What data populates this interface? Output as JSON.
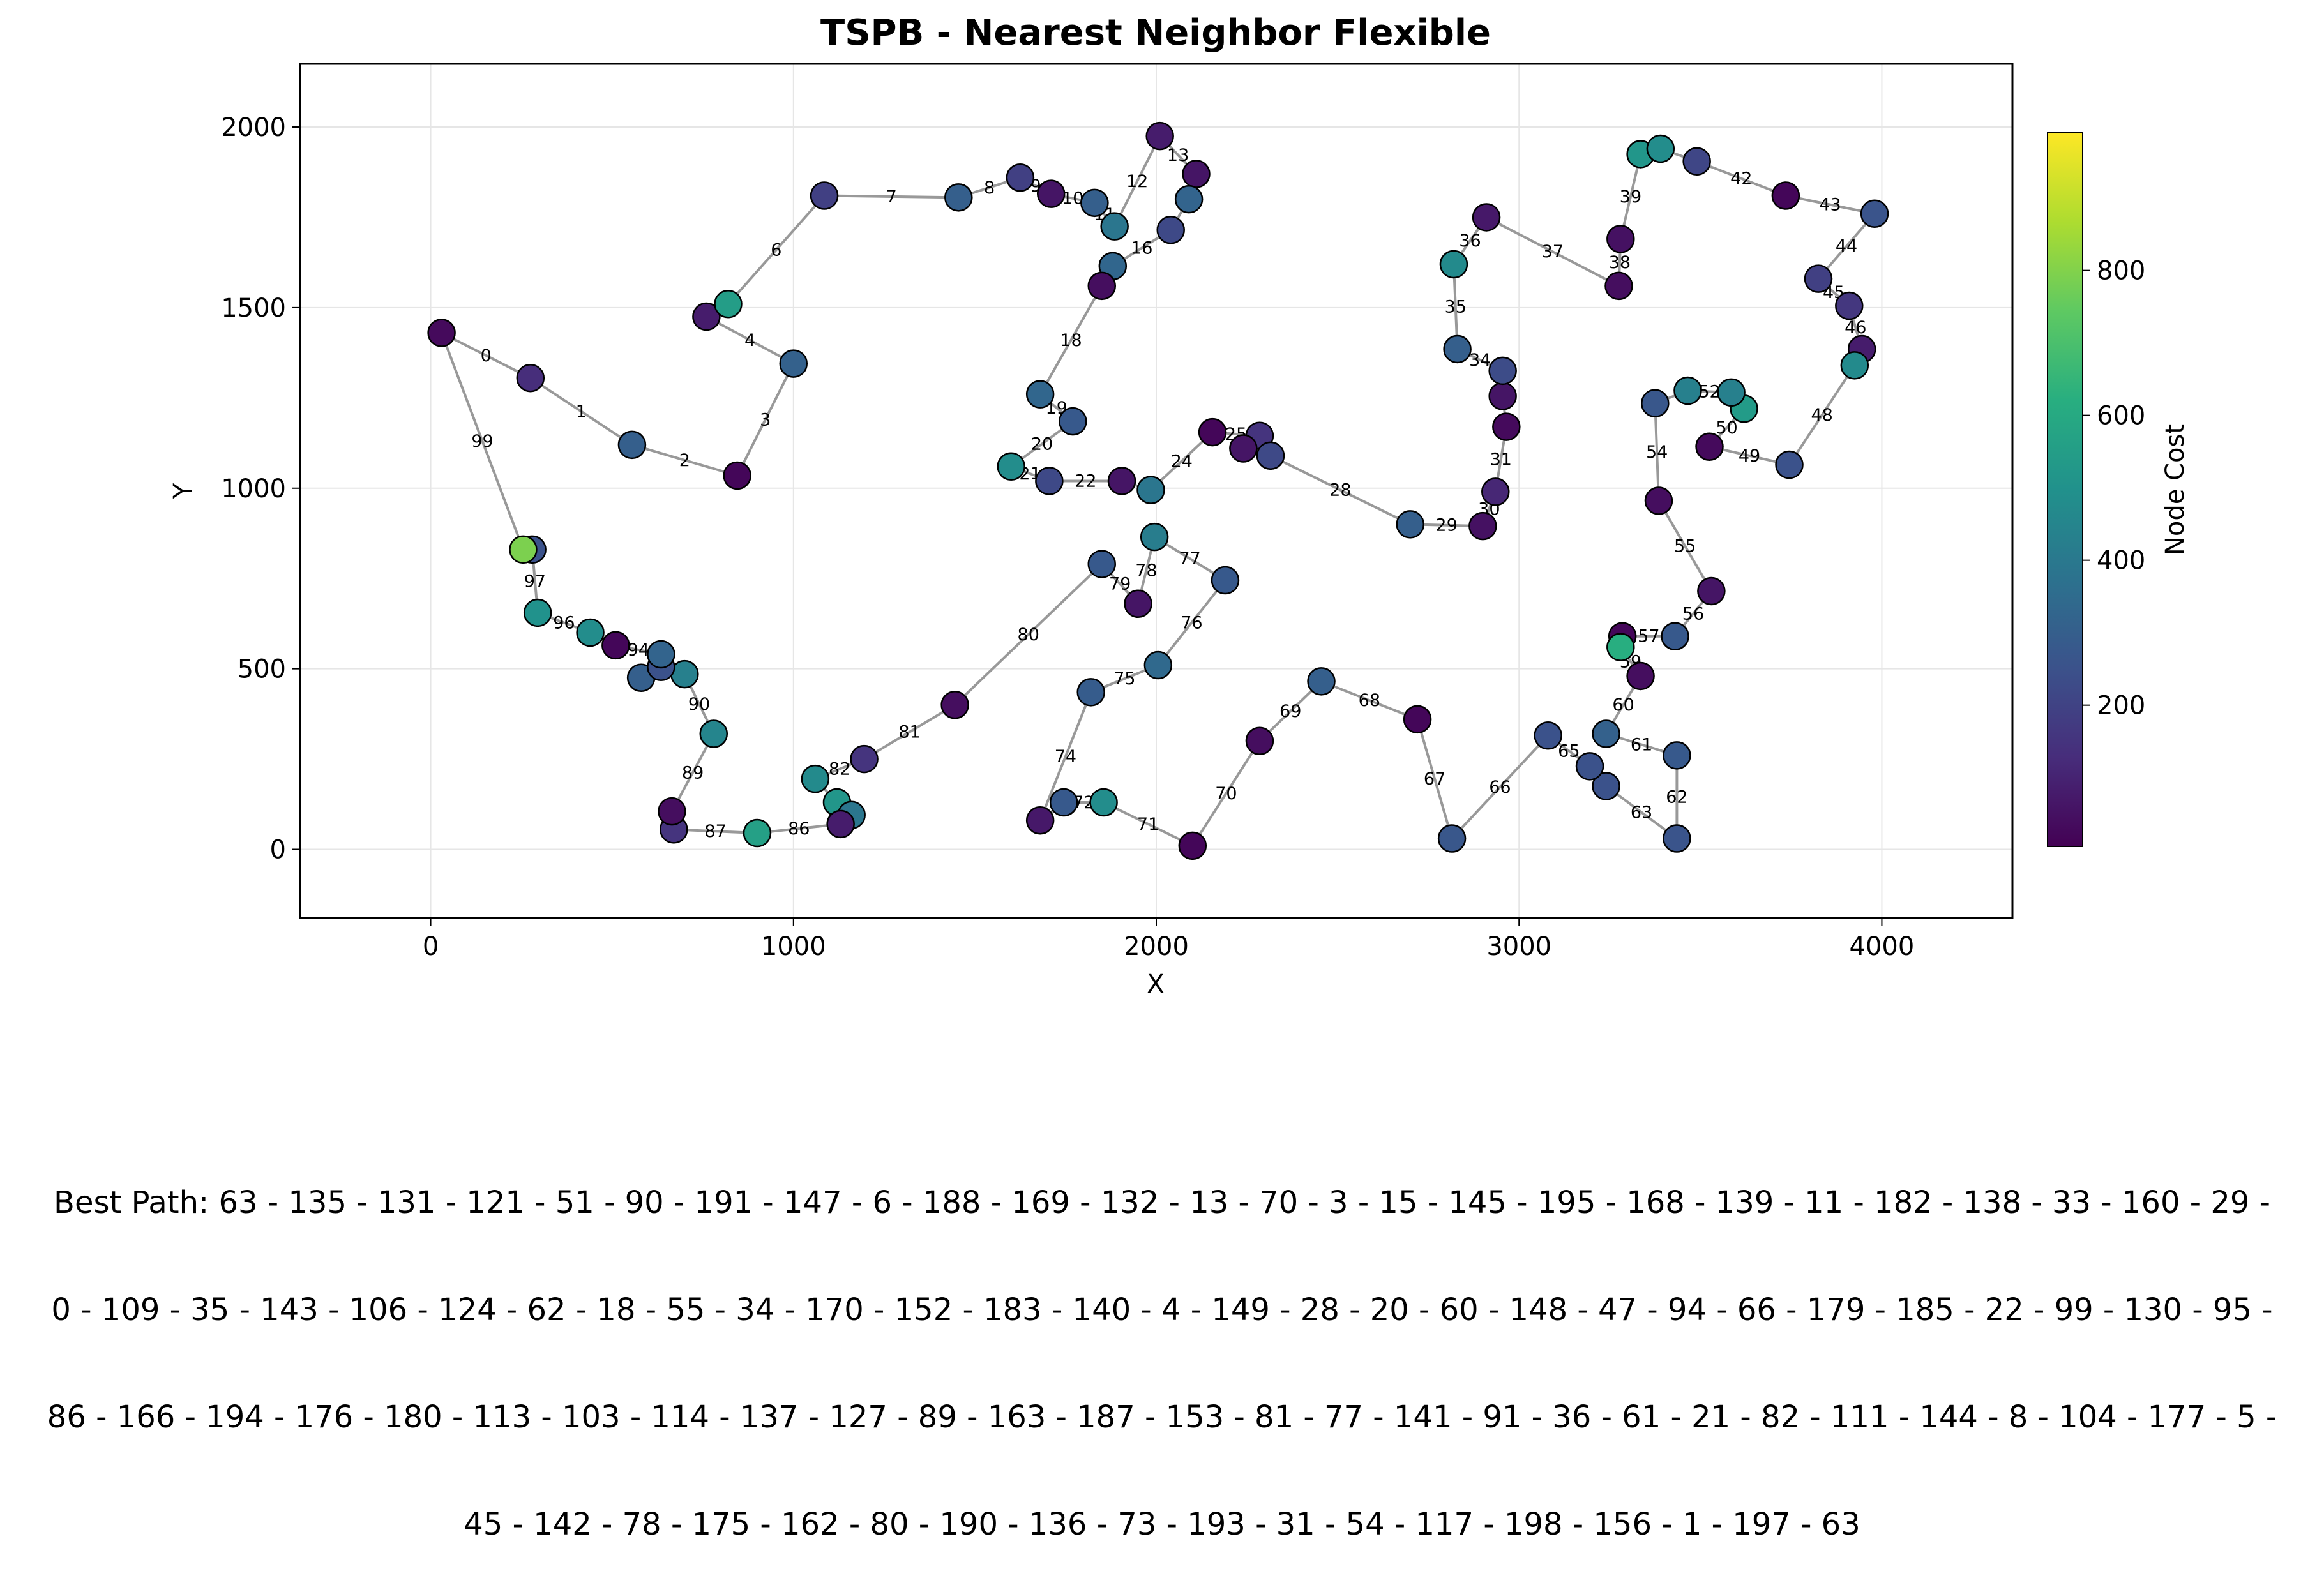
{
  "chart_data": {
    "type": "scatter",
    "title": "TSPB - Nearest Neighbor Flexible",
    "xlabel": "X",
    "ylabel": "Y",
    "xlim": [
      -360,
      4360
    ],
    "ylim": [
      -190,
      2175
    ],
    "xticks": [
      0,
      1000,
      2000,
      3000,
      4000
    ],
    "yticks": [
      0,
      500,
      1000,
      1500,
      2000
    ],
    "grid": true,
    "colorbar": {
      "label": "Node Cost",
      "colormap": "viridis",
      "min": 5,
      "max": 990,
      "ticks": [
        200,
        400,
        600,
        800
      ]
    },
    "edge_color": "#999999",
    "tour": [
      {
        "x": 30,
        "y": 1430,
        "cost": 30
      },
      {
        "x": 275,
        "y": 1305,
        "cost": 130
      },
      {
        "x": 555,
        "y": 1120,
        "cost": 300
      },
      {
        "x": 845,
        "y": 1035,
        "cost": 20
      },
      {
        "x": 1000,
        "y": 1345,
        "cost": 310
      },
      {
        "x": 760,
        "y": 1475,
        "cost": 80
      },
      {
        "x": 820,
        "y": 1510,
        "cost": 550
      },
      {
        "x": 1085,
        "y": 1810,
        "cost": 190
      },
      {
        "x": 1455,
        "y": 1805,
        "cost": 300
      },
      {
        "x": 1625,
        "y": 1860,
        "cost": 190
      },
      {
        "x": 1710,
        "y": 1815,
        "cost": 60
      },
      {
        "x": 1830,
        "y": 1790,
        "cost": 300
      },
      {
        "x": 1885,
        "y": 1725,
        "cost": 390
      },
      {
        "x": 2010,
        "y": 1975,
        "cost": 80
      },
      {
        "x": 2110,
        "y": 1870,
        "cost": 60
      },
      {
        "x": 2090,
        "y": 1800,
        "cost": 320
      },
      {
        "x": 2040,
        "y": 1715,
        "cost": 220
      },
      {
        "x": 1880,
        "y": 1615,
        "cost": 330
      },
      {
        "x": 1850,
        "y": 1560,
        "cost": 40
      },
      {
        "x": 1680,
        "y": 1260,
        "cost": 330
      },
      {
        "x": 1770,
        "y": 1185,
        "cost": 280
      },
      {
        "x": 1600,
        "y": 1060,
        "cost": 480
      },
      {
        "x": 1705,
        "y": 1020,
        "cost": 220
      },
      {
        "x": 1905,
        "y": 1020,
        "cost": 60
      },
      {
        "x": 1985,
        "y": 995,
        "cost": 390
      },
      {
        "x": 2155,
        "y": 1155,
        "cost": 20
      },
      {
        "x": 2285,
        "y": 1145,
        "cost": 150
      },
      {
        "x": 2240,
        "y": 1110,
        "cost": 60
      },
      {
        "x": 2315,
        "y": 1090,
        "cost": 220
      },
      {
        "x": 2700,
        "y": 900,
        "cost": 300
      },
      {
        "x": 2900,
        "y": 895,
        "cost": 50
      },
      {
        "x": 2935,
        "y": 990,
        "cost": 110
      },
      {
        "x": 2965,
        "y": 1170,
        "cost": 30
      },
      {
        "x": 2955,
        "y": 1255,
        "cost": 60
      },
      {
        "x": 2955,
        "y": 1325,
        "cost": 230
      },
      {
        "x": 2830,
        "y": 1385,
        "cost": 300
      },
      {
        "x": 2820,
        "y": 1620,
        "cost": 470
      },
      {
        "x": 2910,
        "y": 1750,
        "cost": 70
      },
      {
        "x": 3275,
        "y": 1560,
        "cost": 40
      },
      {
        "x": 3280,
        "y": 1690,
        "cost": 50
      },
      {
        "x": 3335,
        "y": 1925,
        "cost": 520
      },
      {
        "x": 3390,
        "y": 1940,
        "cost": 480
      },
      {
        "x": 3490,
        "y": 1905,
        "cost": 210
      },
      {
        "x": 3735,
        "y": 1810,
        "cost": 20
      },
      {
        "x": 3980,
        "y": 1760,
        "cost": 260
      },
      {
        "x": 3825,
        "y": 1580,
        "cost": 190
      },
      {
        "x": 3910,
        "y": 1505,
        "cost": 160
      },
      {
        "x": 3945,
        "y": 1385,
        "cost": 80
      },
      {
        "x": 3925,
        "y": 1340,
        "cost": 470
      },
      {
        "x": 3745,
        "y": 1065,
        "cost": 250
      },
      {
        "x": 3525,
        "y": 1115,
        "cost": 30
      },
      {
        "x": 3620,
        "y": 1220,
        "cost": 540
      },
      {
        "x": 3585,
        "y": 1265,
        "cost": 430
      },
      {
        "x": 3465,
        "y": 1270,
        "cost": 430
      },
      {
        "x": 3375,
        "y": 1235,
        "cost": 270
      },
      {
        "x": 3385,
        "y": 965,
        "cost": 40
      },
      {
        "x": 3530,
        "y": 715,
        "cost": 60
      },
      {
        "x": 3430,
        "y": 590,
        "cost": 280
      },
      {
        "x": 3285,
        "y": 590,
        "cost": 20
      },
      {
        "x": 3280,
        "y": 560,
        "cost": 620
      },
      {
        "x": 3335,
        "y": 480,
        "cost": 40
      },
      {
        "x": 3240,
        "y": 320,
        "cost": 310
      },
      {
        "x": 3435,
        "y": 260,
        "cost": 280
      },
      {
        "x": 3435,
        "y": 30,
        "cost": 260
      },
      {
        "x": 3240,
        "y": 175,
        "cost": 250
      },
      {
        "x": 3195,
        "y": 230,
        "cost": 250
      },
      {
        "x": 3080,
        "y": 315,
        "cost": 250
      },
      {
        "x": 2815,
        "y": 30,
        "cost": 270
      },
      {
        "x": 2720,
        "y": 360,
        "cost": 20
      },
      {
        "x": 2455,
        "y": 465,
        "cost": 300
      },
      {
        "x": 2285,
        "y": 300,
        "cost": 40
      },
      {
        "x": 2100,
        "y": 10,
        "cost": 20
      },
      {
        "x": 1855,
        "y": 130,
        "cost": 480
      },
      {
        "x": 1745,
        "y": 130,
        "cost": 280
      },
      {
        "x": 1680,
        "y": 80,
        "cost": 70
      },
      {
        "x": 1820,
        "y": 435,
        "cost": 290
      },
      {
        "x": 2005,
        "y": 510,
        "cost": 340
      },
      {
        "x": 2190,
        "y": 745,
        "cost": 280
      },
      {
        "x": 1995,
        "y": 865,
        "cost": 420
      },
      {
        "x": 1950,
        "y": 680,
        "cost": 60
      },
      {
        "x": 1850,
        "y": 790,
        "cost": 280
      },
      {
        "x": 1445,
        "y": 400,
        "cost": 40
      },
      {
        "x": 1195,
        "y": 250,
        "cost": 150
      },
      {
        "x": 1060,
        "y": 195,
        "cost": 470
      },
      {
        "x": 1120,
        "y": 130,
        "cost": 520
      },
      {
        "x": 1160,
        "y": 95,
        "cost": 390
      },
      {
        "x": 1130,
        "y": 70,
        "cost": 80
      },
      {
        "x": 900,
        "y": 45,
        "cost": 560
      },
      {
        "x": 670,
        "y": 55,
        "cost": 150
      },
      {
        "x": 665,
        "y": 105,
        "cost": 40
      },
      {
        "x": 780,
        "y": 320,
        "cost": 450
      },
      {
        "x": 700,
        "y": 485,
        "cost": 430
      },
      {
        "x": 580,
        "y": 475,
        "cost": 300
      },
      {
        "x": 635,
        "y": 505,
        "cost": 250
      },
      {
        "x": 635,
        "y": 540,
        "cost": 320
      },
      {
        "x": 510,
        "y": 565,
        "cost": 20
      },
      {
        "x": 440,
        "y": 600,
        "cost": 480
      },
      {
        "x": 295,
        "y": 655,
        "cost": 500
      },
      {
        "x": 280,
        "y": 830,
        "cost": 250
      },
      {
        "x": 255,
        "y": 830,
        "cost": 790
      }
    ],
    "edge_labels": [
      {
        "text": "0",
        "edge": 0
      },
      {
        "text": "1",
        "edge": 1
      },
      {
        "text": "2",
        "edge": 2
      },
      {
        "text": "3",
        "edge": 3
      },
      {
        "text": "4",
        "edge": 4
      },
      {
        "text": "6",
        "edge": 6
      },
      {
        "text": "7",
        "edge": 7
      },
      {
        "text": "8",
        "edge": 8
      },
      {
        "text": "9",
        "edge": 9
      },
      {
        "text": "10",
        "edge": 10
      },
      {
        "text": "11",
        "edge": 11
      },
      {
        "text": "12",
        "edge": 12
      },
      {
        "text": "13",
        "edge": 13
      },
      {
        "text": "16",
        "edge": 16
      },
      {
        "text": "18",
        "edge": 18
      },
      {
        "text": "19",
        "edge": 19
      },
      {
        "text": "20",
        "edge": 20
      },
      {
        "text": "21",
        "edge": 21
      },
      {
        "text": "22",
        "edge": 22
      },
      {
        "text": "24",
        "edge": 24
      },
      {
        "text": "25",
        "edge": 25
      },
      {
        "text": "28",
        "edge": 28
      },
      {
        "text": "29",
        "edge": 29
      },
      {
        "text": "30",
        "edge": 30
      },
      {
        "text": "31",
        "edge": 31
      },
      {
        "text": "34",
        "edge": 34
      },
      {
        "text": "35",
        "edge": 35
      },
      {
        "text": "36",
        "edge": 36
      },
      {
        "text": "37",
        "edge": 37
      },
      {
        "text": "38",
        "edge": 38
      },
      {
        "text": "39",
        "edge": 39
      },
      {
        "text": "42",
        "edge": 42
      },
      {
        "text": "43",
        "edge": 43
      },
      {
        "text": "44",
        "edge": 44
      },
      {
        "text": "45",
        "edge": 45
      },
      {
        "text": "46",
        "edge": 46
      },
      {
        "text": "48",
        "edge": 48
      },
      {
        "text": "49",
        "edge": 49
      },
      {
        "text": "50",
        "edge": 50
      },
      {
        "text": "52",
        "edge": 52
      },
      {
        "text": "54",
        "edge": 54
      },
      {
        "text": "55",
        "edge": 55
      },
      {
        "text": "56",
        "edge": 56
      },
      {
        "text": "57",
        "edge": 57
      },
      {
        "text": "59",
        "edge": 59
      },
      {
        "text": "60",
        "edge": 60
      },
      {
        "text": "61",
        "edge": 61
      },
      {
        "text": "62",
        "edge": 62
      },
      {
        "text": "63",
        "edge": 63
      },
      {
        "text": "65",
        "edge": 65
      },
      {
        "text": "66",
        "edge": 66
      },
      {
        "text": "67",
        "edge": 67
      },
      {
        "text": "68",
        "edge": 68
      },
      {
        "text": "69",
        "edge": 69
      },
      {
        "text": "70",
        "edge": 70
      },
      {
        "text": "71",
        "edge": 71
      },
      {
        "text": "72",
        "edge": 72
      },
      {
        "text": "74",
        "edge": 74
      },
      {
        "text": "75",
        "edge": 75
      },
      {
        "text": "76",
        "edge": 76
      },
      {
        "text": "77",
        "edge": 77
      },
      {
        "text": "78",
        "edge": 78
      },
      {
        "text": "79",
        "edge": 79
      },
      {
        "text": "80",
        "edge": 80
      },
      {
        "text": "81",
        "edge": 81
      },
      {
        "text": "82",
        "edge": 82
      },
      {
        "text": "86",
        "edge": 86
      },
      {
        "text": "87",
        "edge": 87
      },
      {
        "text": "89",
        "edge": 89
      },
      {
        "text": "90",
        "edge": 90
      },
      {
        "text": "94",
        "edge": 94
      },
      {
        "text": "96",
        "edge": 96
      },
      {
        "text": "97",
        "edge": 97
      },
      {
        "text": "99",
        "edge": 99
      }
    ],
    "caption_lines": [
      "Best Path: 63 - 135 - 131 - 121 - 51 - 90 - 191 - 147 - 6 - 188 - 169 - 132 - 13 - 70 - 3 - 15 - 145 - 195 - 168 - 139 - 11 - 182 - 138 - 33 - 160 - 29 -",
      "0 - 109 - 35 - 143 - 106 - 124 - 62 - 18 - 55 - 34 - 170 - 152 - 183 - 140 - 4 - 149 - 28 - 20 - 60 - 148 - 47 - 94 - 66 - 179 - 185 - 22 - 99 - 130 - 95 -",
      "86 - 166 - 194 - 176 - 180 - 113 - 103 - 114 - 137 - 127 - 89 - 163 - 187 - 153 - 81 - 77 - 141 - 91 - 36 - 61 - 21 - 82 - 111 - 144 - 8 - 104 - 177 - 5 -",
      "45 - 142 - 78 - 175 - 162 - 80 - 190 - 136 - 73 - 193 - 31 - 54 - 117 - 198 - 156 - 1 - 197 - 63"
    ]
  }
}
